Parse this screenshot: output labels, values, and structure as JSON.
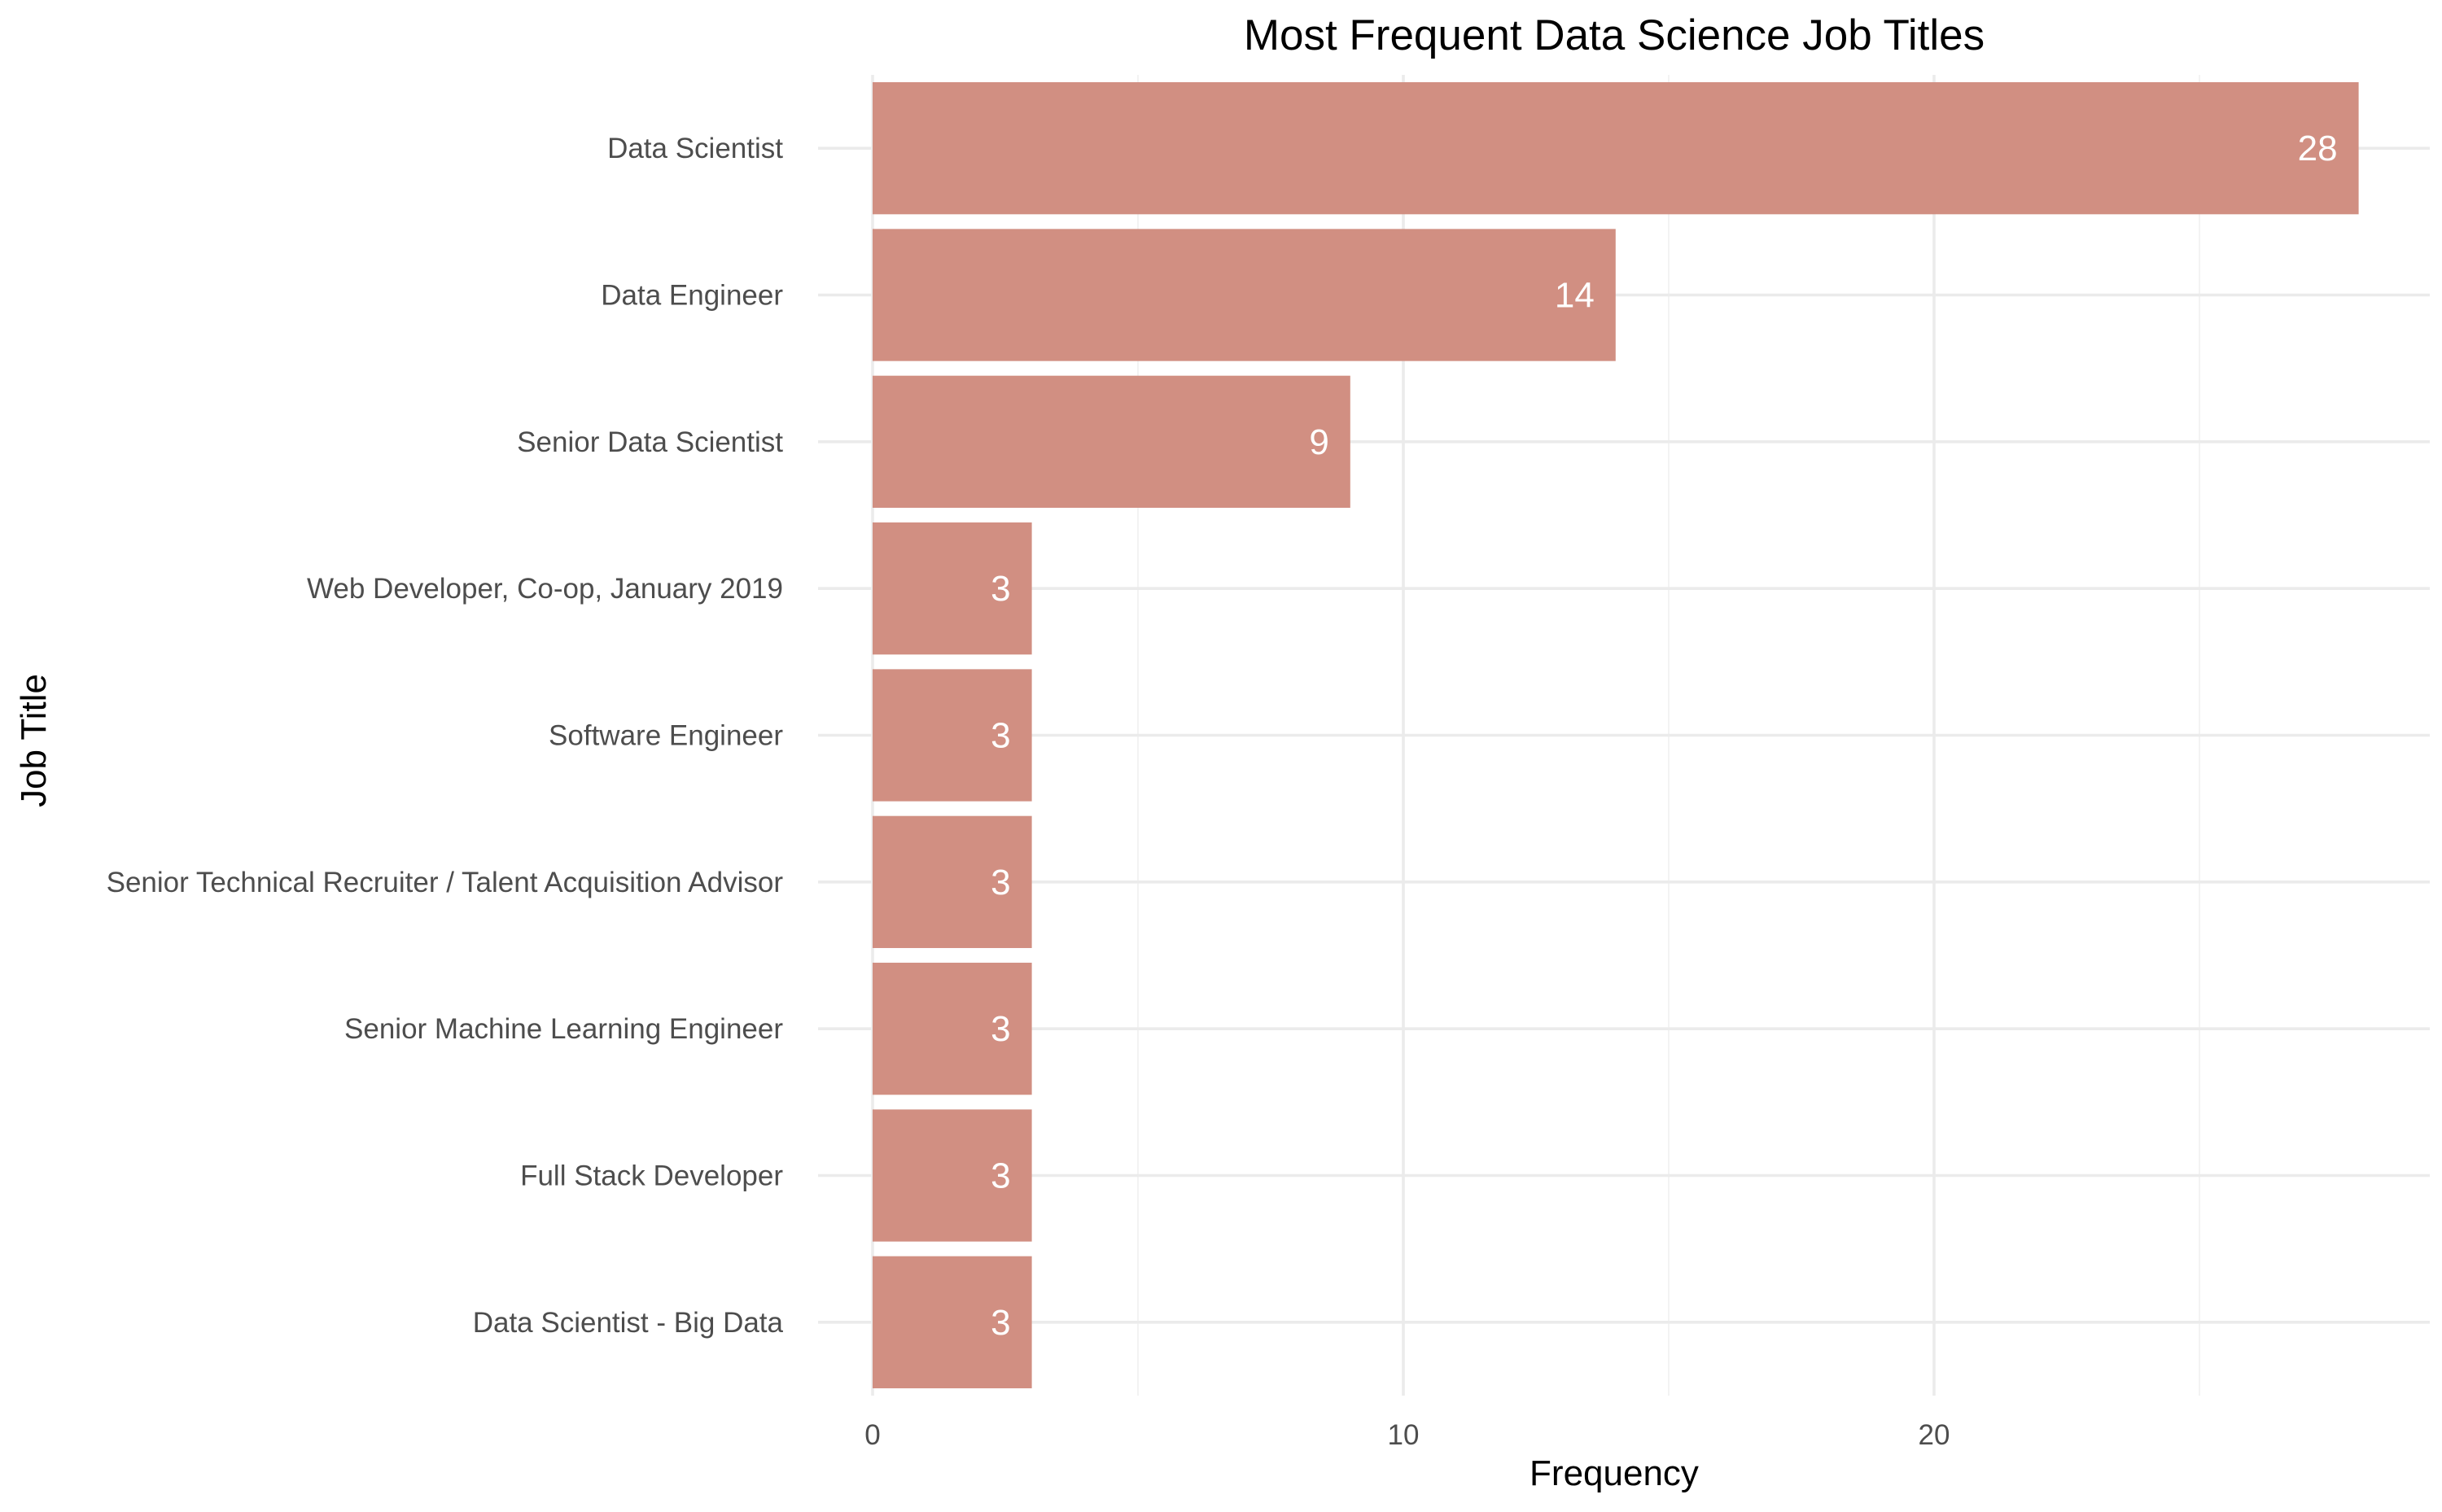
{
  "chart_data": {
    "type": "bar",
    "orientation": "horizontal",
    "title": "Most Frequent Data Science Job Titles",
    "xlabel": "Frequency",
    "ylabel": "Job Title",
    "categories": [
      "Data Scientist",
      "Data Engineer",
      "Senior Data Scientist",
      "Web Developer, Co-op, January 2019",
      "Software Engineer",
      "Senior Technical Recruiter / Talent Acquisition Advisor",
      "Senior Machine Learning Engineer",
      "Full Stack Developer",
      "Data Scientist - Big Data"
    ],
    "values": [
      28,
      14,
      9,
      3,
      3,
      3,
      3,
      3,
      3
    ],
    "xlim": [
      0,
      29
    ],
    "xticks": [
      0,
      10,
      20
    ],
    "grid": true,
    "legend": "none",
    "bar_color": "#d18f82",
    "label_color": "#ffffff"
  }
}
